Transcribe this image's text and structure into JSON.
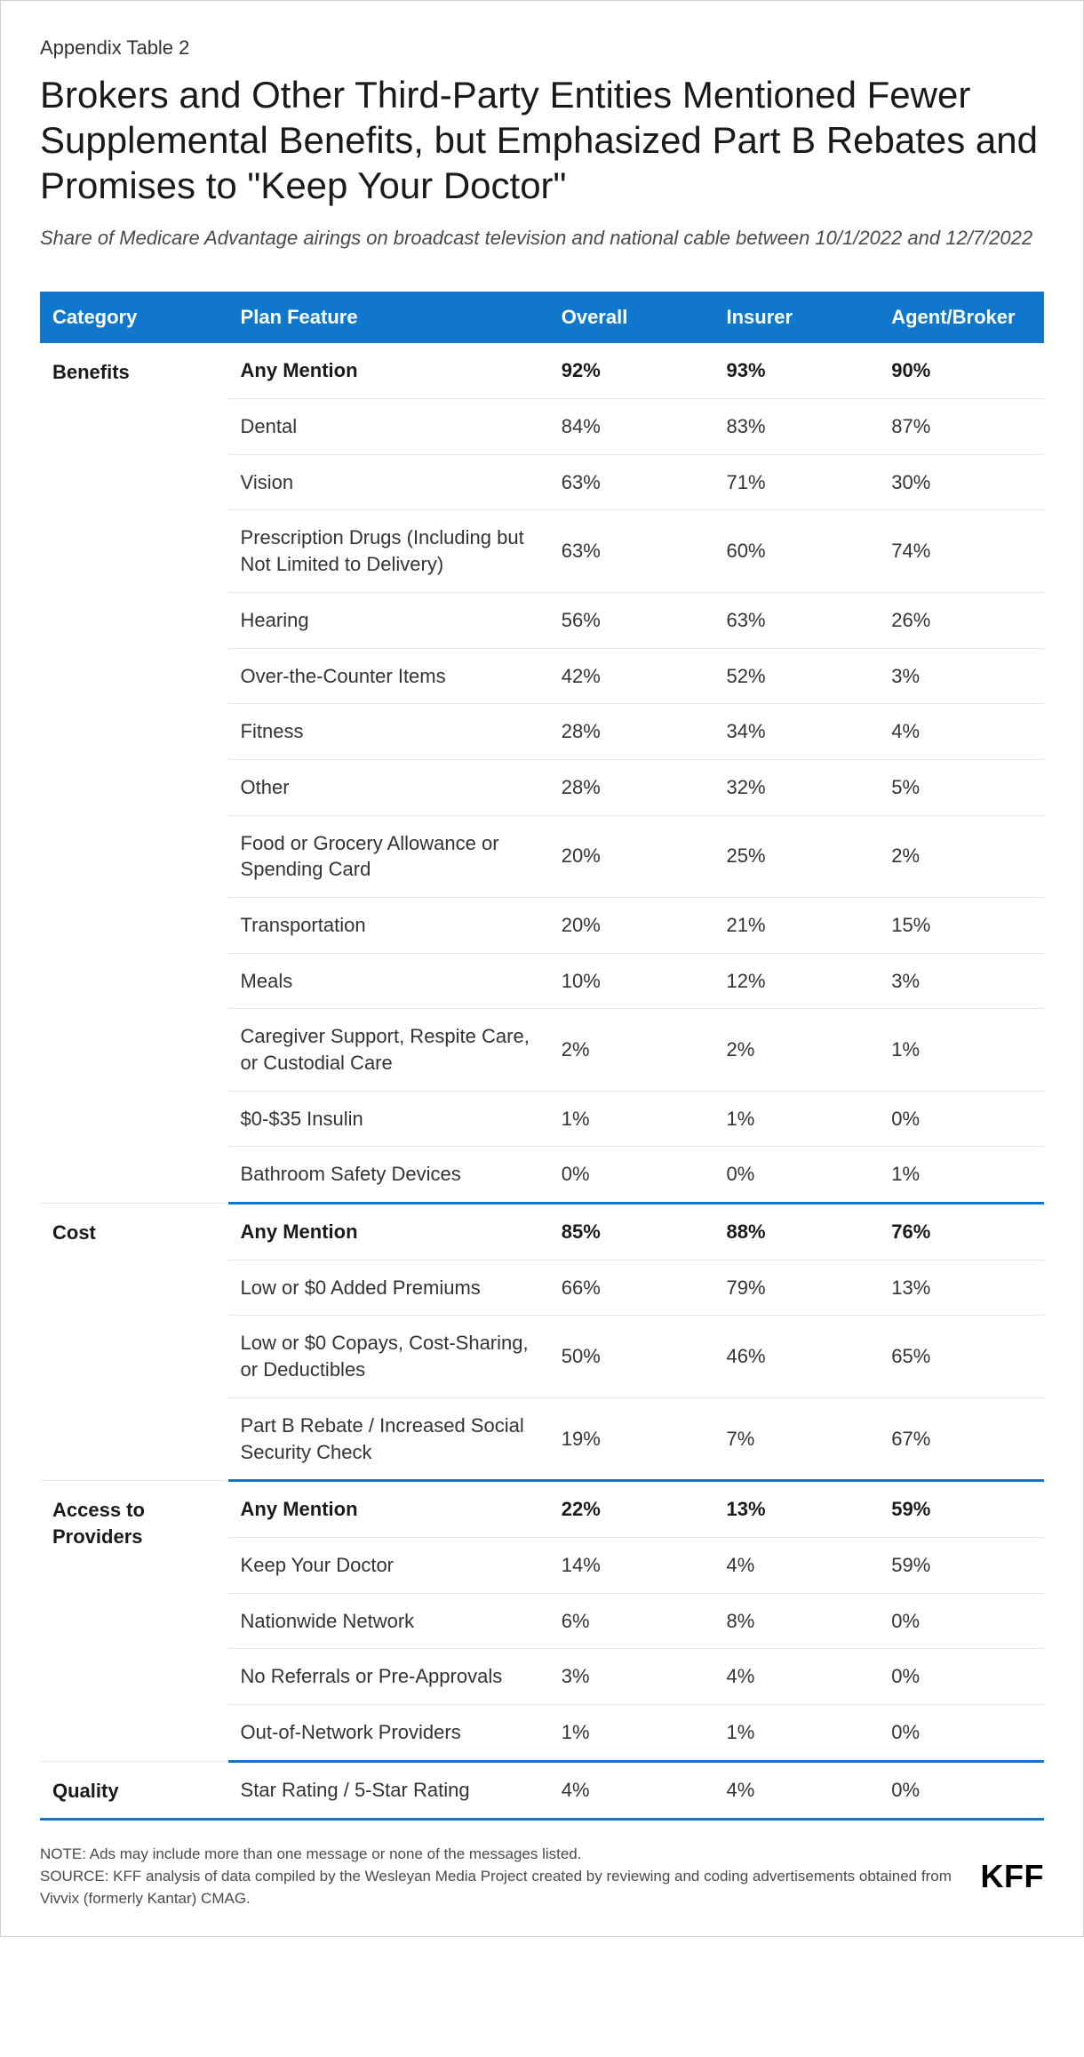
{
  "kicker": "Appendix Table 2",
  "title": "Brokers and Other Third-Party Entities Mentioned Fewer Supplemental Benefits, but Emphasized Part B Rebates and Promises to \"Keep Your Doctor\"",
  "subtitle": "Share of Medicare Advantage airings on broadcast television and national cable between 10/1/2022 and 12/7/2022",
  "columns": [
    "Category",
    "Plan Feature",
    "Overall",
    "Insurer",
    "Agent/Broker"
  ],
  "sections": [
    {
      "category": "Benefits",
      "rows": [
        {
          "feature": "Any Mention",
          "overall": "92%",
          "insurer": "93%",
          "broker": "90%",
          "bold": true
        },
        {
          "feature": "Dental",
          "overall": "84%",
          "insurer": "83%",
          "broker": "87%"
        },
        {
          "feature": "Vision",
          "overall": "63%",
          "insurer": "71%",
          "broker": "30%"
        },
        {
          "feature": "Prescription Drugs (Including but Not Limited to Delivery)",
          "overall": "63%",
          "insurer": "60%",
          "broker": "74%"
        },
        {
          "feature": "Hearing",
          "overall": "56%",
          "insurer": "63%",
          "broker": "26%"
        },
        {
          "feature": "Over-the-Counter Items",
          "overall": "42%",
          "insurer": "52%",
          "broker": "3%"
        },
        {
          "feature": "Fitness",
          "overall": "28%",
          "insurer": "34%",
          "broker": "4%"
        },
        {
          "feature": "Other",
          "overall": "28%",
          "insurer": "32%",
          "broker": "5%"
        },
        {
          "feature": "Food or Grocery Allowance or Spending Card",
          "overall": "20%",
          "insurer": "25%",
          "broker": "2%"
        },
        {
          "feature": "Transportation",
          "overall": "20%",
          "insurer": "21%",
          "broker": "15%"
        },
        {
          "feature": "Meals",
          "overall": "10%",
          "insurer": "12%",
          "broker": "3%"
        },
        {
          "feature": "Caregiver Support, Respite Care, or Custodial Care",
          "overall": "2%",
          "insurer": "2%",
          "broker": "1%"
        },
        {
          "feature": "$0-$35 Insulin",
          "overall": "1%",
          "insurer": "1%",
          "broker": "0%"
        },
        {
          "feature": "Bathroom Safety Devices",
          "overall": "0%",
          "insurer": "0%",
          "broker": "1%"
        }
      ]
    },
    {
      "category": "Cost",
      "rows": [
        {
          "feature": "Any Mention",
          "overall": "85%",
          "insurer": "88%",
          "broker": "76%",
          "bold": true
        },
        {
          "feature": "Low or $0 Added Premiums",
          "overall": "66%",
          "insurer": "79%",
          "broker": "13%"
        },
        {
          "feature": "Low or $0 Copays, Cost-Sharing, or Deductibles",
          "overall": "50%",
          "insurer": "46%",
          "broker": "65%"
        },
        {
          "feature": "Part B Rebate / Increased Social Security Check",
          "overall": "19%",
          "insurer": "7%",
          "broker": "67%"
        }
      ]
    },
    {
      "category": "Access to Providers",
      "rows": [
        {
          "feature": "Any Mention",
          "overall": "22%",
          "insurer": "13%",
          "broker": "59%",
          "bold": true
        },
        {
          "feature": "Keep Your Doctor",
          "overall": "14%",
          "insurer": "4%",
          "broker": "59%"
        },
        {
          "feature": "Nationwide Network",
          "overall": "6%",
          "insurer": "8%",
          "broker": "0%"
        },
        {
          "feature": "No Referrals or Pre-Approvals",
          "overall": "3%",
          "insurer": "4%",
          "broker": "0%"
        },
        {
          "feature": "Out-of-Network Providers",
          "overall": "1%",
          "insurer": "1%",
          "broker": "0%"
        }
      ]
    },
    {
      "category": "Quality",
      "rows": [
        {
          "feature": "Star Rating / 5-Star Rating",
          "overall": "4%",
          "insurer": "4%",
          "broker": "0%"
        }
      ]
    }
  ],
  "note": "NOTE: Ads may include more than one message or none of the messages listed.",
  "source": "SOURCE: KFF analysis of data compiled by the Wesleyan Media Project created by reviewing and coding advertisements obtained from Vivvix (formerly Kantar) CMAG.",
  "logo": "KFF",
  "colors": {
    "header_bg": "#0f77cc",
    "header_text": "#ffffff",
    "row_border": "#e5e5e5",
    "section_border": "#0f77cc",
    "text": "#333333",
    "muted": "#4a4a4a"
  }
}
